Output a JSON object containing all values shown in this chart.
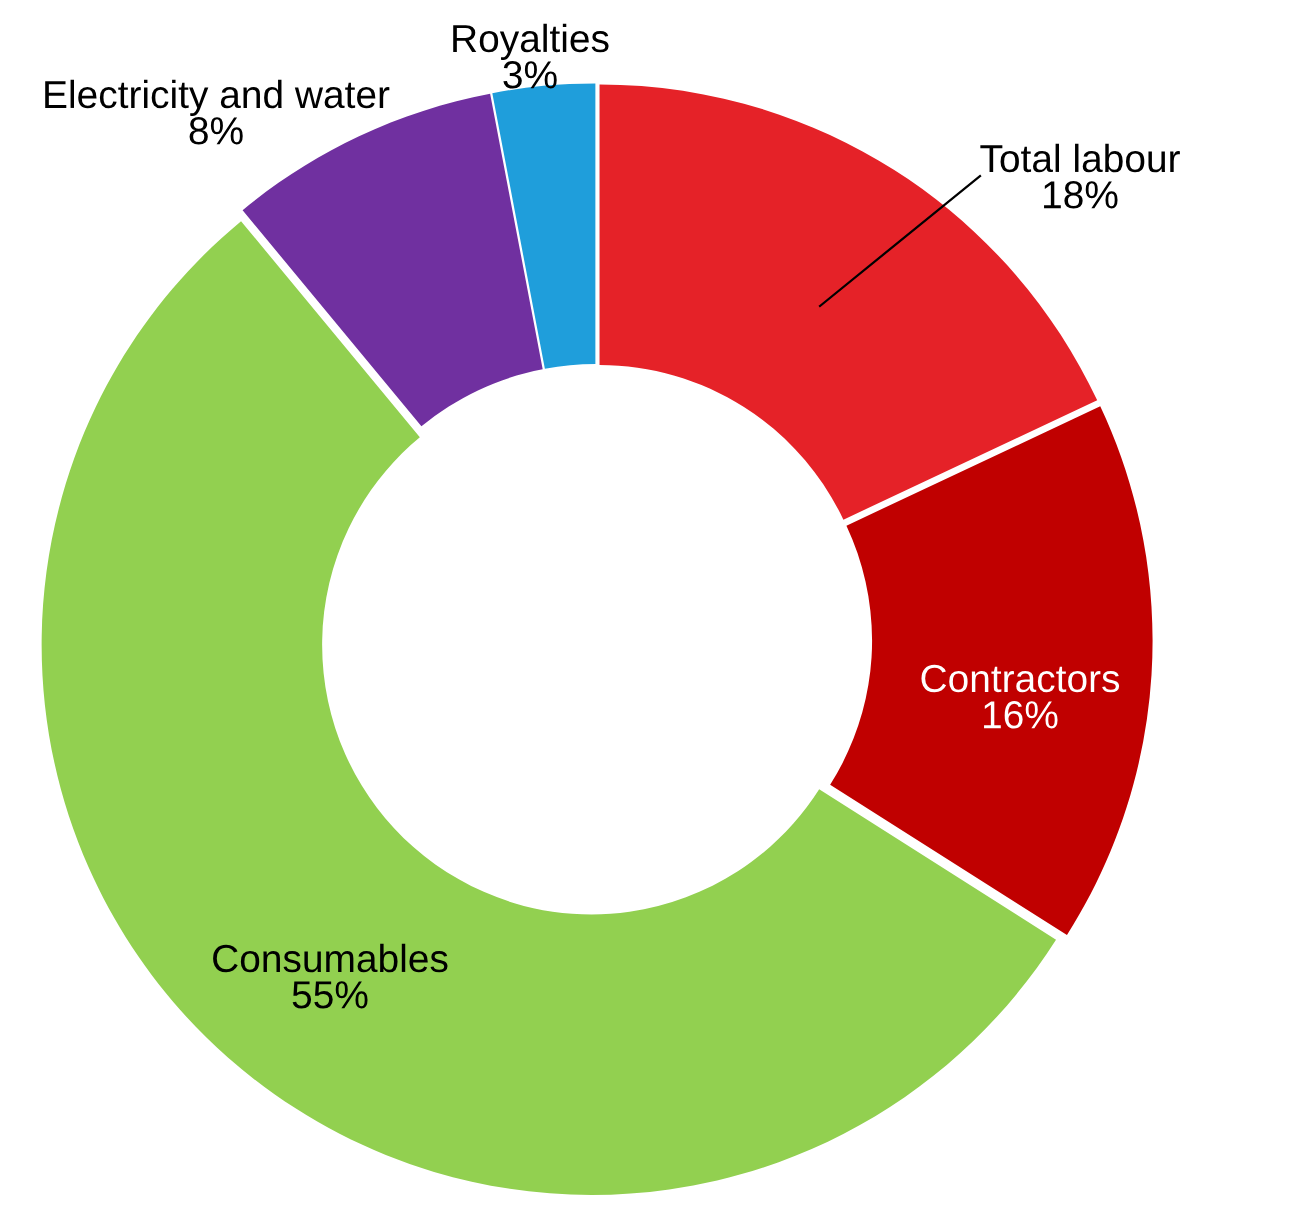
{
  "chart_data": {
    "type": "donut",
    "categories": [
      "Total labour",
      "Contractors",
      "Consumables",
      "Electricity and water",
      "Royalties"
    ],
    "values": [
      18,
      16,
      55,
      8,
      3
    ],
    "value_labels": [
      "18%",
      "16%",
      "55%",
      "8%",
      "3%"
    ],
    "colors": [
      "#e52228",
      "#c00000",
      "#92d050",
      "#7030a0",
      "#1f9edb"
    ]
  }
}
